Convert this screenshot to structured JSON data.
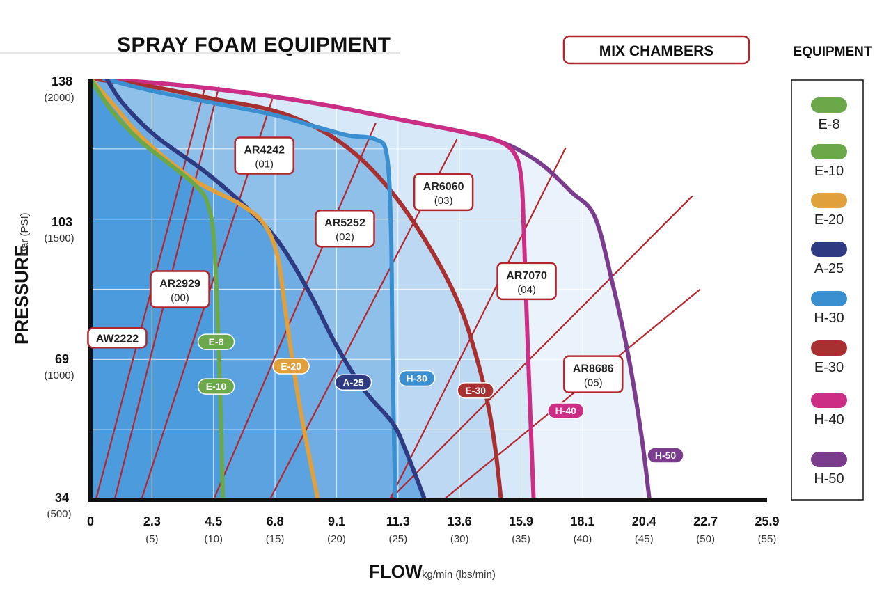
{
  "title": "SPRAY FOAM EQUIPMENT",
  "mix_chambers_label": "MIX CHAMBERS",
  "equipment_label": "EQUIPMENT",
  "colors": {
    "E-8": "#6ba84a",
    "E-10": "#6ba84a",
    "E-20": "#e0a03c",
    "A-25": "#2e3a82",
    "H-30": "#3a8fd0",
    "E-30": "#a83030",
    "H-40": "#cc2e86",
    "H-50": "#7b3c8e",
    "mix_chamber": "#b4252c"
  },
  "chart_data": {
    "type": "line",
    "title": "SPRAY FOAM EQUIPMENT",
    "xlabel": "FLOW",
    "xlabel_unit": "kg/min (lbs/min)",
    "ylabel": "PRESSURE",
    "ylabel_unit": "Bar (PSI)",
    "xlim": [
      0,
      25.9
    ],
    "ylim": [
      34,
      138
    ],
    "x_ticks": [
      {
        "value": 0,
        "label": "0",
        "sub": ""
      },
      {
        "value": 2.3,
        "label": "2.3",
        "sub": "(5)"
      },
      {
        "value": 4.5,
        "label": "4.5",
        "sub": "(10)"
      },
      {
        "value": 6.8,
        "label": "6.8",
        "sub": "(15)"
      },
      {
        "value": 9.1,
        "label": "9.1",
        "sub": "(20)"
      },
      {
        "value": 11.3,
        "label": "11.3",
        "sub": "(25)"
      },
      {
        "value": 13.6,
        "label": "13.6",
        "sub": "(30)"
      },
      {
        "value": 15.9,
        "label": "15.9",
        "sub": "(35)"
      },
      {
        "value": 18.1,
        "label": "18.1",
        "sub": "(40)"
      },
      {
        "value": 20.4,
        "label": "20.4",
        "sub": "(45)"
      },
      {
        "value": 22.7,
        "label": "22.7",
        "sub": "(50)"
      },
      {
        "value": 25.9,
        "label": "25.9",
        "sub": "(55)"
      }
    ],
    "y_ticks": [
      {
        "value": 138,
        "label": "138",
        "sub": "(2000)"
      },
      {
        "value": 103,
        "label": "103",
        "sub": "(1500)"
      },
      {
        "value": 69,
        "label": "69",
        "sub": "(1000)"
      },
      {
        "value": 34,
        "label": "34",
        "sub": "(500)"
      }
    ],
    "grid": true,
    "legend_position": "right",
    "series": [
      {
        "name": "E-8",
        "points": [
          [
            0,
            138
          ],
          [
            0.8,
            130
          ],
          [
            1.8,
            123
          ],
          [
            2.9,
            117
          ],
          [
            3.8,
            112
          ],
          [
            4.3,
            107
          ],
          [
            4.55,
            95
          ],
          [
            4.75,
            60
          ],
          [
            4.85,
            34
          ]
        ]
      },
      {
        "name": "E-10",
        "points": [
          [
            0,
            138
          ],
          [
            0.8,
            130
          ],
          [
            1.8,
            123
          ],
          [
            2.9,
            117
          ],
          [
            3.8,
            112
          ],
          [
            4.3,
            107
          ],
          [
            4.55,
            95
          ],
          [
            4.75,
            60
          ],
          [
            4.85,
            34
          ]
        ]
      },
      {
        "name": "E-20",
        "points": [
          [
            0,
            138
          ],
          [
            0.8,
            132
          ],
          [
            2,
            123
          ],
          [
            3.8,
            113
          ],
          [
            5.5,
            107
          ],
          [
            6.4,
            102
          ],
          [
            6.9,
            94
          ],
          [
            7.2,
            80
          ],
          [
            7.7,
            58
          ],
          [
            8.4,
            34
          ]
        ]
      },
      {
        "name": "A-25",
        "points": [
          [
            0.6,
            138
          ],
          [
            1.2,
            132
          ],
          [
            2.4,
            124
          ],
          [
            4.2,
            115
          ],
          [
            5.6,
            107
          ],
          [
            6.9,
            98
          ],
          [
            8.1,
            85
          ],
          [
            9.1,
            72
          ],
          [
            10.1,
            61
          ],
          [
            11.1,
            53
          ],
          [
            11.6,
            46
          ],
          [
            12.3,
            34
          ]
        ]
      },
      {
        "name": "H-30",
        "points": [
          [
            0.5,
            138
          ],
          [
            2.3,
            135
          ],
          [
            4.5,
            132
          ],
          [
            6.8,
            129
          ],
          [
            8.4,
            126
          ],
          [
            9.5,
            124
          ],
          [
            10.5,
            123
          ],
          [
            10.9,
            119
          ],
          [
            11.05,
            100
          ],
          [
            11.1,
            70
          ],
          [
            11.2,
            34
          ]
        ]
      },
      {
        "name": "E-30",
        "points": [
          [
            0,
            138
          ],
          [
            2.3,
            136
          ],
          [
            4.5,
            133
          ],
          [
            6.8,
            130
          ],
          [
            8.6,
            125
          ],
          [
            10.0,
            118
          ],
          [
            11.3,
            108
          ],
          [
            12.6,
            95
          ],
          [
            13.6,
            82
          ],
          [
            14.2,
            70
          ],
          [
            14.65,
            58
          ],
          [
            14.95,
            46
          ],
          [
            15.15,
            34
          ]
        ]
      },
      {
        "name": "H-40",
        "points": [
          [
            0,
            138
          ],
          [
            2.3,
            137
          ],
          [
            4.5,
            135.5
          ],
          [
            6.8,
            133.5
          ],
          [
            9.1,
            131
          ],
          [
            11.3,
            128
          ],
          [
            13.6,
            125
          ],
          [
            14.9,
            123
          ],
          [
            15.6,
            120
          ],
          [
            15.9,
            114
          ],
          [
            16.0,
            100
          ],
          [
            16.15,
            70
          ],
          [
            16.35,
            34
          ]
        ]
      },
      {
        "name": "H-50",
        "points": [
          [
            0,
            138
          ],
          [
            2.3,
            137
          ],
          [
            4.5,
            135.5
          ],
          [
            6.8,
            133.5
          ],
          [
            9.1,
            131
          ],
          [
            11.3,
            128
          ],
          [
            13.6,
            125
          ],
          [
            15.3,
            122
          ],
          [
            16.6,
            117
          ],
          [
            17.7,
            110
          ],
          [
            18.55,
            104
          ],
          [
            19.2,
            88
          ],
          [
            19.8,
            70
          ],
          [
            20.3,
            50
          ],
          [
            20.6,
            34
          ]
        ]
      }
    ],
    "series_labels": [
      {
        "name": "E-8",
        "text": "E-8",
        "x": 4.6,
        "y": 73
      },
      {
        "name": "E-10",
        "text": "E-10",
        "x": 4.6,
        "y": 62
      },
      {
        "name": "E-20",
        "text": "E-20",
        "x": 7.4,
        "y": 67
      },
      {
        "name": "A-25",
        "text": "A-25",
        "x": 9.7,
        "y": 63
      },
      {
        "name": "H-30",
        "text": "H-30",
        "x": 12.0,
        "y": 64
      },
      {
        "name": "E-30",
        "text": "E-30",
        "x": 14.2,
        "y": 61
      },
      {
        "name": "H-40",
        "text": "H-40",
        "x": 17.5,
        "y": 56
      },
      {
        "name": "H-50",
        "text": "H-50",
        "x": 21.2,
        "y": 45
      }
    ],
    "mix_chambers": [
      {
        "name": "AW2222",
        "code": "",
        "from": [
          0.2,
          34
        ],
        "to": [
          4.2,
          136
        ],
        "box_center": [
          1.0,
          74
        ]
      },
      {
        "name": "AR2929",
        "code": "(00)",
        "from": [
          0.9,
          34
        ],
        "to": [
          4.7,
          136
        ],
        "box_center": [
          3.3,
          86
        ]
      },
      {
        "name": "AR4242",
        "code": "(01)",
        "from": [
          1.9,
          34
        ],
        "to": [
          6.7,
          133
        ],
        "box_center": [
          6.4,
          119
        ]
      },
      {
        "name": "AR5252",
        "code": "(02)",
        "from": [
          4.5,
          34
        ],
        "to": [
          10.5,
          127
        ],
        "box_center": [
          9.4,
          101
        ]
      },
      {
        "name": "AR6060",
        "code": "(03)",
        "from": [
          6.6,
          34
        ],
        "to": [
          13.5,
          123
        ],
        "box_center": [
          13.0,
          110
        ]
      },
      {
        "name": "AR7070",
        "code": "(04)",
        "from": [
          11.0,
          34
        ],
        "to": [
          17.5,
          121
        ],
        "box_center": [
          16.1,
          88
        ]
      },
      {
        "name": "AR8686",
        "code": "(05)",
        "from": [
          11.0,
          34
        ],
        "to": [
          22.2,
          109
        ],
        "box_center": [
          18.5,
          65
        ]
      },
      {
        "name": "",
        "code": "",
        "from": [
          13.0,
          34
        ],
        "to": [
          22.5,
          86
        ],
        "box_center": null
      }
    ]
  },
  "legend": [
    {
      "label": "E-8",
      "color": "#6ba84a"
    },
    {
      "label": "E-10",
      "color": "#6ba84a"
    },
    {
      "label": "E-20",
      "color": "#e0a03c"
    },
    {
      "label": "A-25",
      "color": "#2e3a82"
    },
    {
      "label": "H-30",
      "color": "#3a8fd0"
    },
    {
      "label": "E-30",
      "color": "#a83030"
    },
    {
      "label": "H-40",
      "color": "#cc2e86"
    },
    {
      "label": "H-50",
      "color": "#7b3c8e"
    }
  ]
}
